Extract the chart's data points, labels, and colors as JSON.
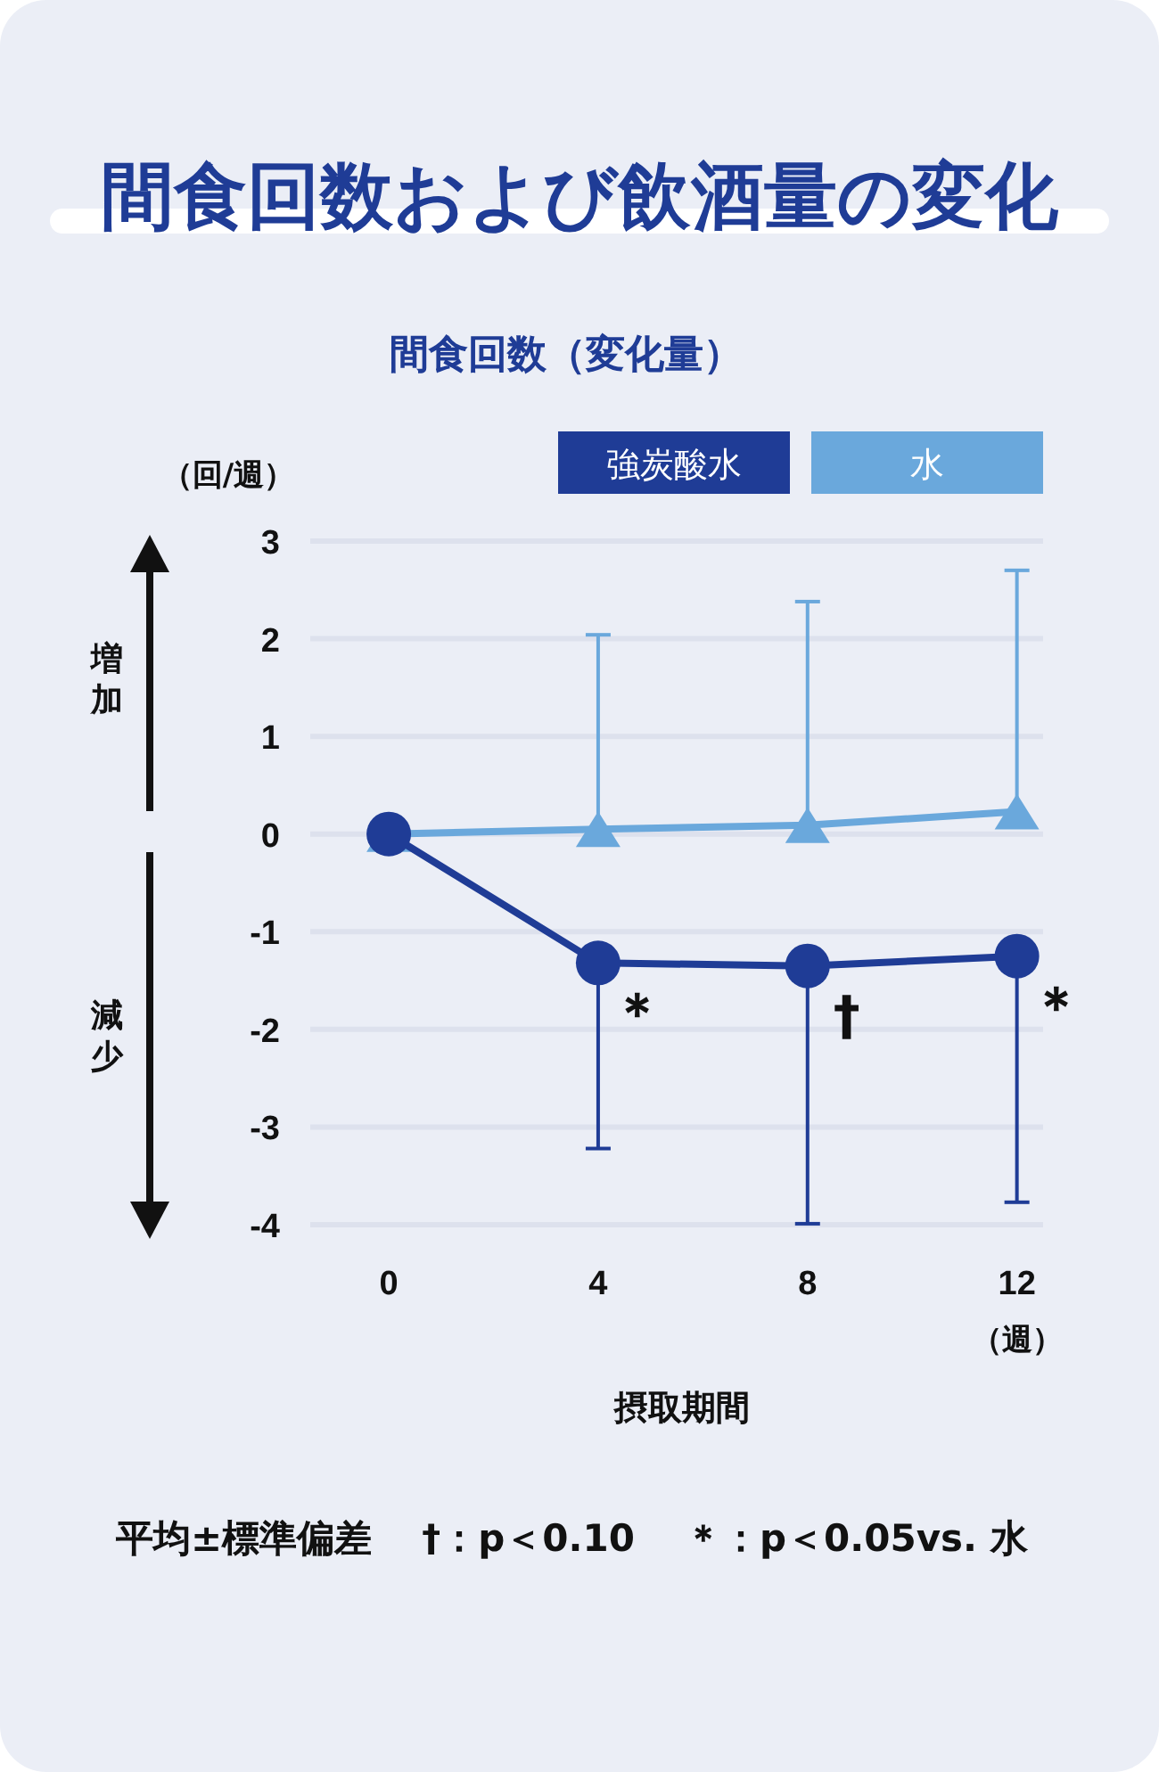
{
  "chart_data": {
    "type": "line",
    "title": "間食回数および飲酒量の変化",
    "subtitle": "間食回数（変化量）",
    "ylabel": "（回/週）",
    "xlabel": "摂取期間",
    "x": [
      0,
      4,
      8,
      12
    ],
    "xlim": [
      -1.5,
      12.5
    ],
    "xticks": [
      0,
      4,
      8,
      12
    ],
    "ylim": [
      -4,
      3
    ],
    "yticks": [
      -4,
      -3,
      -2,
      -1,
      0,
      1,
      2,
      3
    ],
    "grid": "y",
    "legend": "top right",
    "series": [
      {
        "name": "強炭酸水",
        "color": "#1f3c96",
        "marker": "circle",
        "values": [
          0,
          -1.32,
          -1.35,
          -1.25
        ],
        "errors": [
          null,
          [
            -3.22,
            -1.32
          ],
          [
            -3.99,
            -1.35
          ],
          [
            -3.77,
            -1.25
          ]
        ]
      },
      {
        "name": "水",
        "color": "#6aa8dc",
        "marker": "triangle",
        "values": [
          0,
          0.05,
          0.09,
          0.23
        ],
        "errors": [
          null,
          [
            0.05,
            2.04
          ],
          [
            0.09,
            2.38
          ],
          [
            0.23,
            2.7
          ]
        ]
      }
    ],
    "annotations": [
      {
        "text": "＊",
        "x": 4,
        "y": -1.32
      },
      {
        "text": "†",
        "x": 8,
        "y": -1.35
      },
      {
        "text": "＊",
        "x": 12,
        "y": -1.25
      },
      "（週）",
      "増加",
      "減少",
      "平均±標準偏差",
      "†：p＜0.10",
      "＊：p＜0.05vs. 水"
    ]
  }
}
